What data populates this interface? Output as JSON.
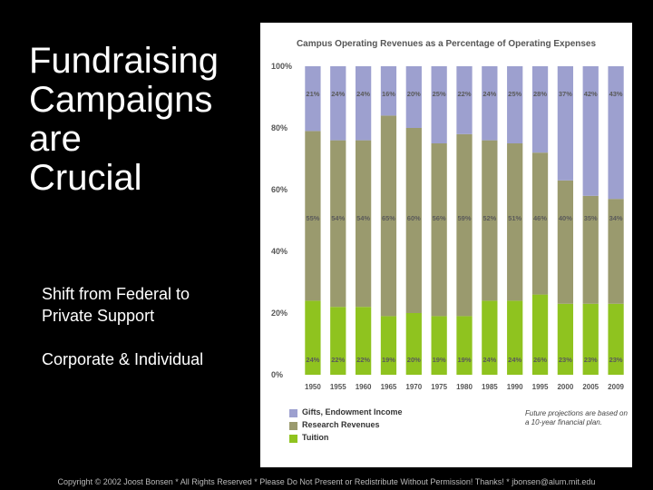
{
  "slide": {
    "title_lines": [
      "Fundraising",
      "Campaigns",
      "are",
      "Crucial"
    ],
    "bullet_1": "Shift from Federal to Private Support",
    "bullet_2": "Corporate & Individual",
    "footer": "Copyright © 2002 Joost Bonsen * All Rights Reserved * Please Do Not Present or Redistribute Without Permission! Thanks! * jbonsen@alum.mit.edu"
  },
  "chart_data": {
    "type": "bar",
    "stacked": true,
    "title": "Campus Operating Revenues as a Percentage of Operating Expenses",
    "categories": [
      "1950",
      "1955",
      "1960",
      "1965",
      "1970",
      "1975",
      "1980",
      "1985",
      "1990",
      "1995",
      "2000",
      "2005",
      "2009"
    ],
    "ylim": [
      0,
      100
    ],
    "yticks": [
      "0%",
      "20%",
      "40%",
      "60%",
      "80%",
      "100%"
    ],
    "series": [
      {
        "name": "Tuition",
        "color": "#8fc31f",
        "values": [
          24,
          22,
          22,
          19,
          20,
          19,
          19,
          24,
          24,
          26,
          23,
          23,
          23
        ]
      },
      {
        "name": "Research Revenues",
        "color": "#9a9a6e",
        "values": [
          55,
          54,
          54,
          65,
          60,
          56,
          59,
          52,
          51,
          46,
          40,
          35,
          34
        ]
      },
      {
        "name": "Gifts, Endowment Income",
        "color": "#9da0cf",
        "values": [
          21,
          24,
          24,
          16,
          20,
          25,
          22,
          24,
          25,
          28,
          37,
          42,
          43
        ]
      }
    ],
    "value_labels": {
      "Gifts, Endowment Income": [
        "21%",
        "24%",
        "24%",
        "16%",
        "20%",
        "25%",
        "22%",
        "24%",
        "25%",
        "28%",
        "37%",
        "42%",
        "43%"
      ],
      "Research Revenues": [
        "55%",
        "54%",
        "54%",
        "65%",
        "60%",
        "56%",
        "59%",
        "52%",
        "51%",
        "46%",
        "40%",
        "35%",
        "34%"
      ],
      "Tuition": [
        "24%",
        "22%",
        "22%",
        "19%",
        "20%",
        "19%",
        "19%",
        "24%",
        "24%",
        "26%",
        "23%",
        "23%",
        "23%"
      ]
    },
    "legend": [
      "Gifts, Endowment Income",
      "Research Revenues",
      "Tuition"
    ],
    "legend_colors": [
      "#9da0cf",
      "#9a9a6e",
      "#8fc31f"
    ],
    "note": "Future projections are based on a 10-year financial plan."
  }
}
